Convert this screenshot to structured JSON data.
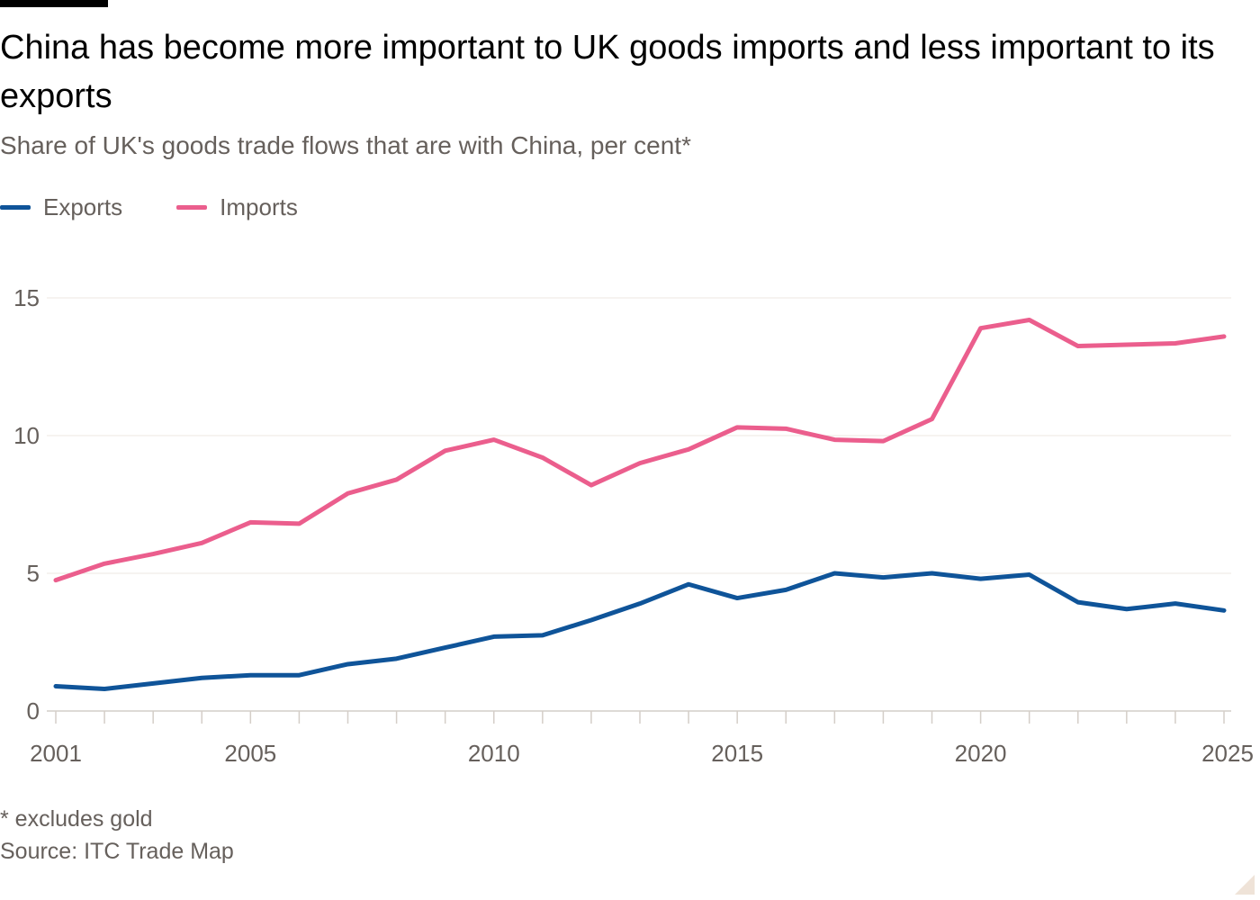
{
  "header": {
    "title": "China has become more important to UK goods imports and less important to its exports",
    "subtitle": "Share of UK's goods trade flows that are with China, per cent*"
  },
  "legend": [
    {
      "label": "Exports",
      "color": "#0f5499"
    },
    {
      "label": "Imports",
      "color": "#eb5e8d"
    }
  ],
  "footer": {
    "note": "* excludes gold",
    "source": "Source: ITC Trade Map"
  },
  "chart_data": {
    "type": "line",
    "x": [
      2001,
      2002,
      2003,
      2004,
      2005,
      2006,
      2007,
      2008,
      2009,
      2010,
      2011,
      2012,
      2013,
      2014,
      2015,
      2016,
      2017,
      2018,
      2019,
      2020,
      2021,
      2022,
      2023,
      2024,
      2025
    ],
    "series": [
      {
        "name": "Exports",
        "color": "#0f5499",
        "values": [
          0.9,
          0.8,
          1.0,
          1.2,
          1.3,
          1.3,
          1.7,
          1.9,
          2.3,
          2.7,
          2.75,
          3.3,
          3.9,
          4.6,
          4.1,
          4.4,
          5.0,
          4.85,
          5.0,
          4.8,
          4.95,
          3.95,
          3.7,
          3.9,
          3.65
        ]
      },
      {
        "name": "Imports",
        "color": "#eb5e8d",
        "values": [
          4.75,
          5.35,
          5.7,
          6.1,
          6.85,
          6.8,
          7.9,
          8.4,
          9.45,
          9.85,
          9.2,
          8.2,
          9.0,
          9.5,
          10.3,
          10.25,
          9.85,
          9.8,
          10.6,
          13.9,
          14.2,
          13.25,
          13.3,
          13.35,
          13.6
        ]
      }
    ],
    "title": "China has become more important to UK goods imports and less important to its exports",
    "subtitle": "Share of UK's goods trade flows that are with China, per cent*",
    "xlabel": "",
    "ylabel": "",
    "ylim": [
      0,
      16
    ],
    "yticks": [
      0,
      5,
      10,
      15
    ],
    "xticks": [
      2001,
      2005,
      2010,
      2015,
      2020,
      2025
    ],
    "grid": true,
    "legend_position": "top-left"
  }
}
